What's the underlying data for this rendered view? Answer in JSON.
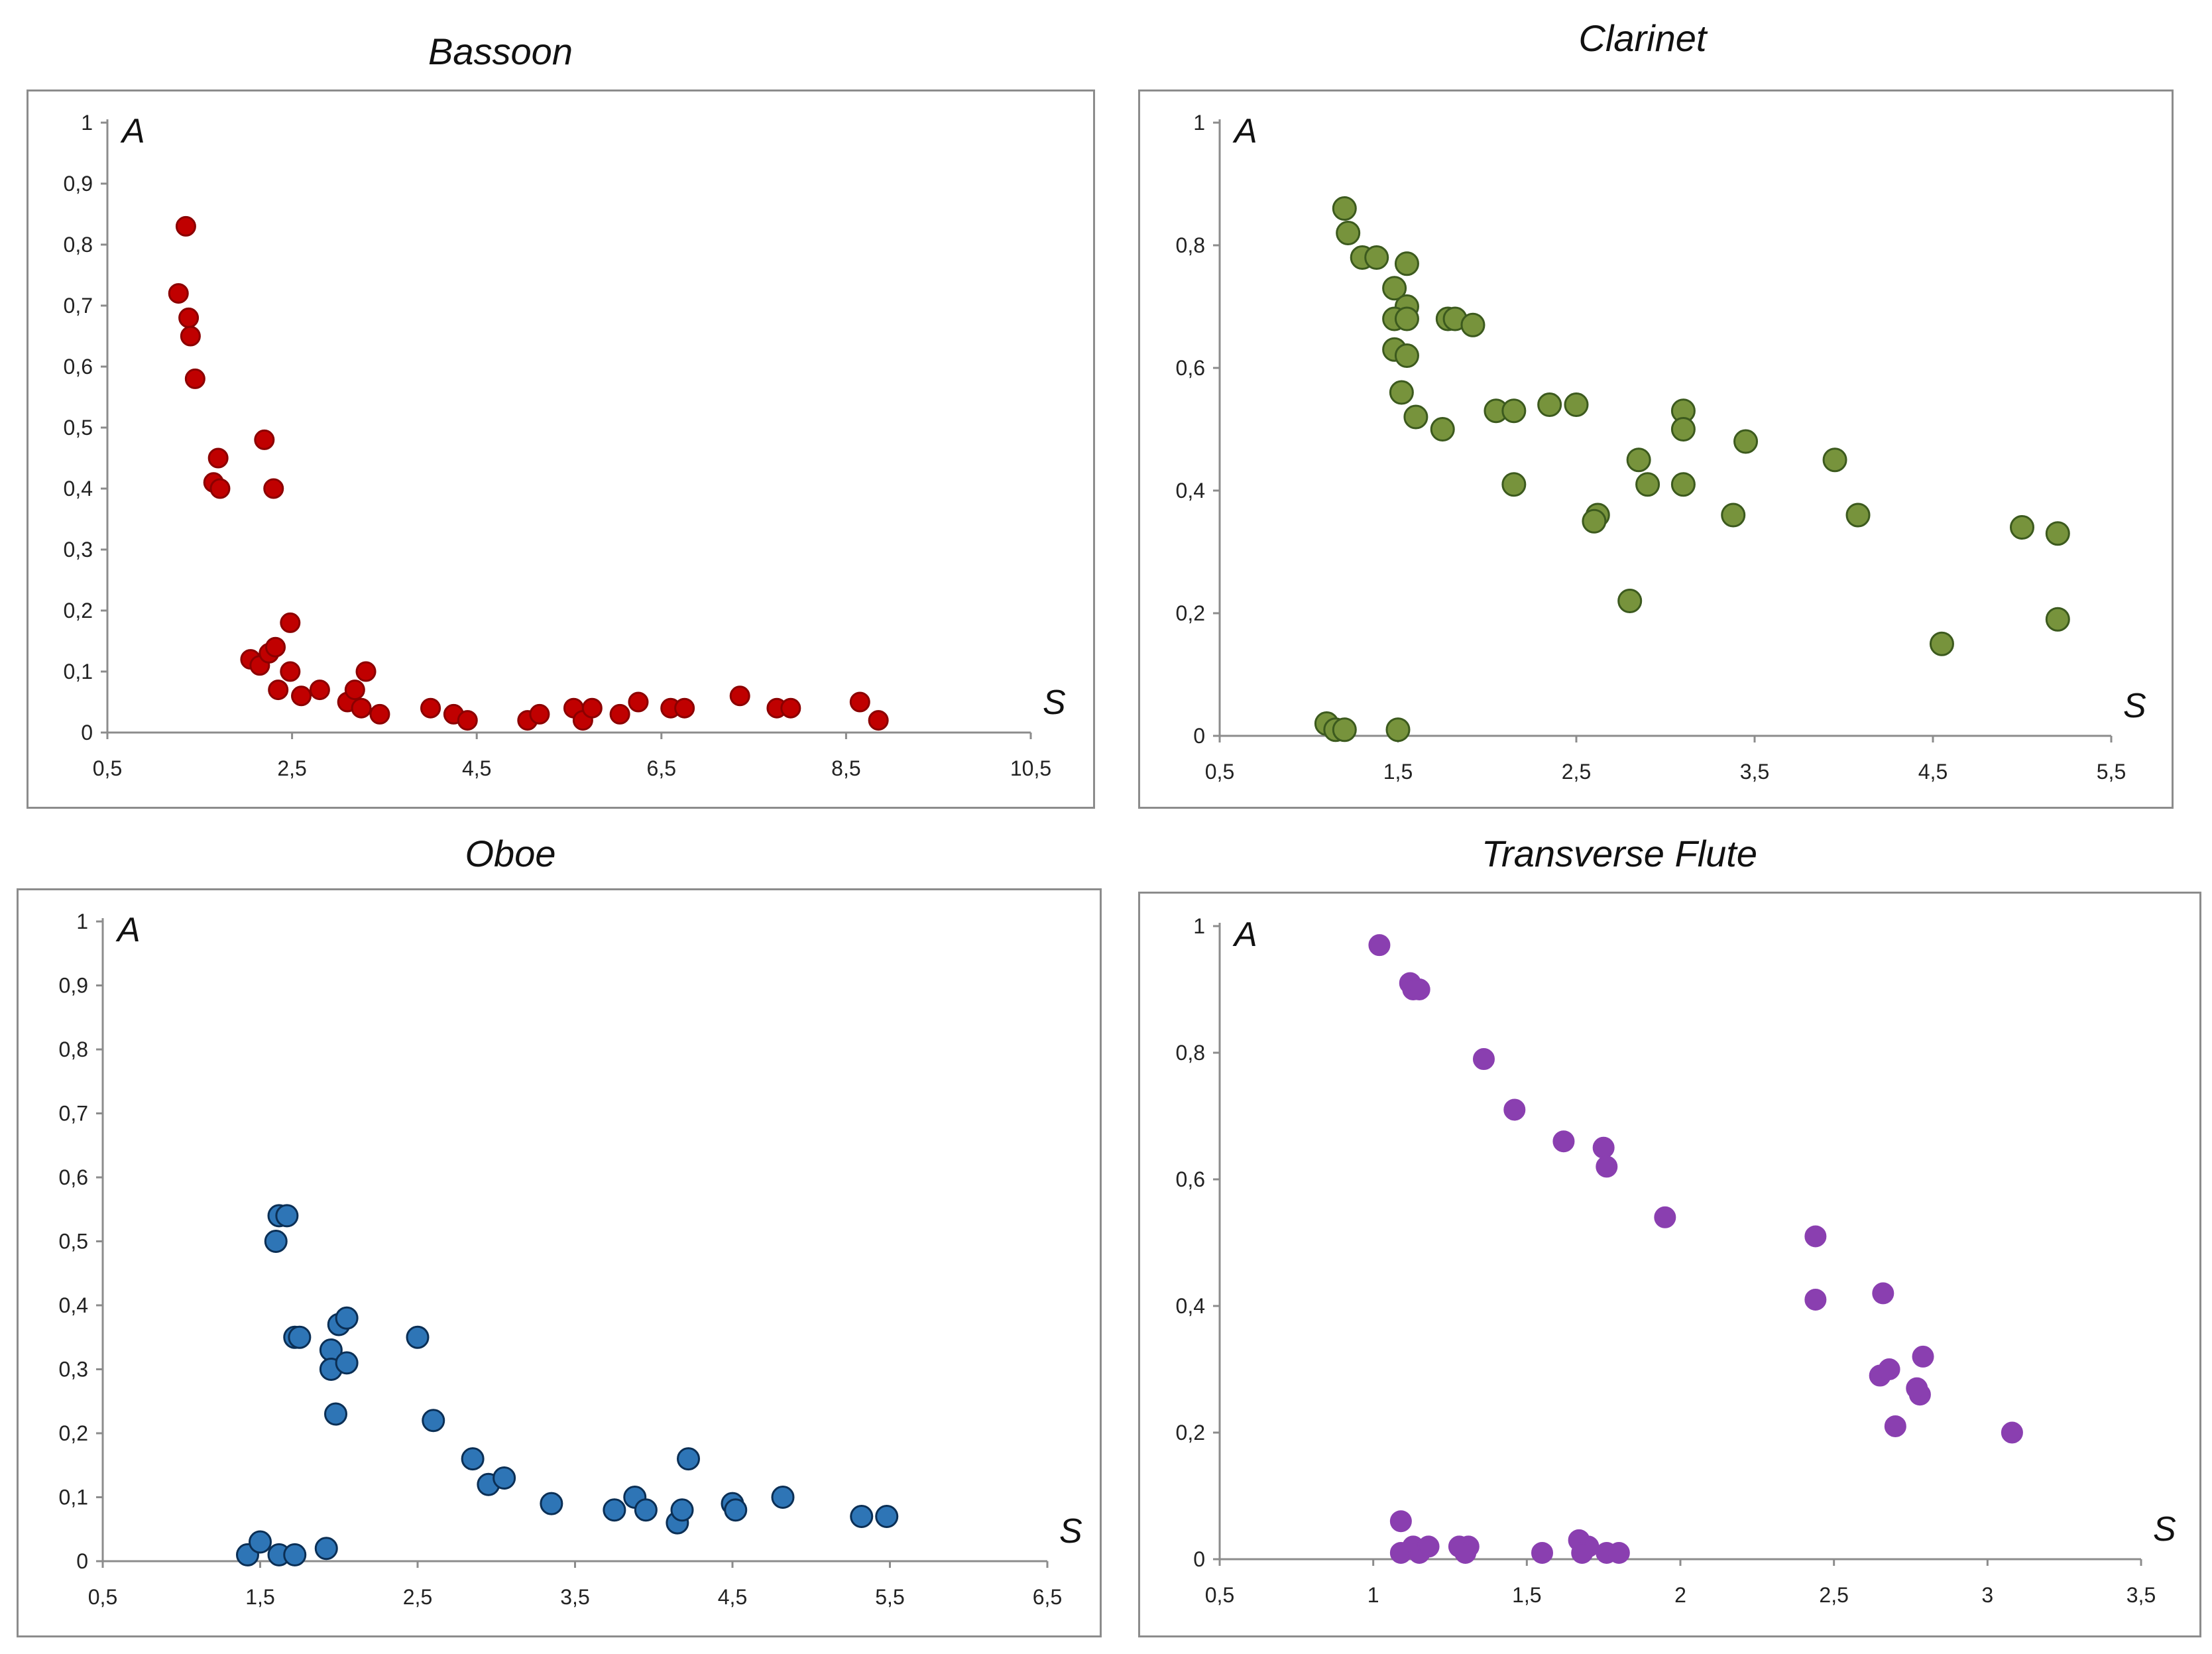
{
  "chart_data": [
    {
      "type": "scatter",
      "title": "Bassoon",
      "xlabel": "S",
      "ylabel": "A",
      "xlim": [
        0.5,
        10.5
      ],
      "ylim": [
        0,
        1
      ],
      "xticks": [
        "0,5",
        "2,5",
        "4,5",
        "6,5",
        "8,5",
        "10,5"
      ],
      "yticks": [
        "0",
        "0,1",
        "0,2",
        "0,3",
        "0,4",
        "0,5",
        "0,6",
        "0,7",
        "0,8",
        "0,9",
        "1"
      ],
      "color": "#c00000",
      "stroke": "#8b0000",
      "series": [
        {
          "name": "Bassoon",
          "points": [
            [
              1.35,
              0.83
            ],
            [
              1.27,
              0.72
            ],
            [
              1.38,
              0.68
            ],
            [
              1.4,
              0.65
            ],
            [
              1.45,
              0.58
            ],
            [
              1.7,
              0.45
            ],
            [
              1.65,
              0.41
            ],
            [
              1.72,
              0.4
            ],
            [
              2.2,
              0.48
            ],
            [
              2.3,
              0.4
            ],
            [
              2.48,
              0.18
            ],
            [
              2.05,
              0.12
            ],
            [
              2.15,
              0.11
            ],
            [
              2.25,
              0.13
            ],
            [
              2.32,
              0.14
            ],
            [
              2.35,
              0.07
            ],
            [
              2.48,
              0.1
            ],
            [
              2.6,
              0.06
            ],
            [
              2.8,
              0.07
            ],
            [
              3.1,
              0.05
            ],
            [
              3.18,
              0.07
            ],
            [
              3.25,
              0.04
            ],
            [
              3.3,
              0.1
            ],
            [
              3.45,
              0.03
            ],
            [
              4.0,
              0.04
            ],
            [
              4.25,
              0.03
            ],
            [
              4.4,
              0.02
            ],
            [
              5.05,
              0.02
            ],
            [
              5.18,
              0.03
            ],
            [
              5.55,
              0.04
            ],
            [
              5.65,
              0.02
            ],
            [
              5.75,
              0.04
            ],
            [
              6.05,
              0.03
            ],
            [
              6.25,
              0.05
            ],
            [
              6.6,
              0.04
            ],
            [
              6.75,
              0.04
            ],
            [
              7.35,
              0.06
            ],
            [
              7.75,
              0.04
            ],
            [
              7.9,
              0.04
            ],
            [
              8.65,
              0.05
            ],
            [
              8.85,
              0.02
            ]
          ]
        }
      ]
    },
    {
      "type": "scatter",
      "title": "Clarinet",
      "xlabel": "S",
      "ylabel": "A",
      "xlim": [
        0.5,
        5.5
      ],
      "ylim": [
        0,
        1
      ],
      "xticks": [
        "0,5",
        "1,5",
        "2,5",
        "3,5",
        "4,5",
        "5,5"
      ],
      "yticks": [
        "0",
        "0,2",
        "0,4",
        "0,6",
        "0,8",
        "1"
      ],
      "color": "#77933c",
      "stroke": "#3c5a1e",
      "series": [
        {
          "name": "Clarinet",
          "points": [
            [
              1.2,
              0.86
            ],
            [
              1.22,
              0.82
            ],
            [
              1.3,
              0.78
            ],
            [
              1.38,
              0.78
            ],
            [
              1.55,
              0.77
            ],
            [
              1.48,
              0.73
            ],
            [
              1.55,
              0.7
            ],
            [
              1.48,
              0.68
            ],
            [
              1.55,
              0.68
            ],
            [
              1.48,
              0.63
            ],
            [
              1.55,
              0.62
            ],
            [
              1.78,
              0.68
            ],
            [
              1.82,
              0.68
            ],
            [
              1.92,
              0.67
            ],
            [
              1.52,
              0.56
            ],
            [
              1.6,
              0.52
            ],
            [
              1.75,
              0.5
            ],
            [
              2.05,
              0.53
            ],
            [
              2.15,
              0.53
            ],
            [
              2.35,
              0.54
            ],
            [
              2.5,
              0.54
            ],
            [
              3.1,
              0.53
            ],
            [
              3.1,
              0.5
            ],
            [
              3.45,
              0.48
            ],
            [
              2.85,
              0.45
            ],
            [
              3.95,
              0.45
            ],
            [
              2.15,
              0.41
            ],
            [
              2.9,
              0.41
            ],
            [
              3.1,
              0.41
            ],
            [
              2.62,
              0.36
            ],
            [
              2.6,
              0.35
            ],
            [
              3.38,
              0.36
            ],
            [
              4.08,
              0.36
            ],
            [
              5.0,
              0.34
            ],
            [
              5.2,
              0.33
            ],
            [
              2.8,
              0.22
            ],
            [
              5.2,
              0.19
            ],
            [
              4.55,
              0.15
            ],
            [
              1.1,
              0.02
            ],
            [
              1.15,
              0.01
            ],
            [
              1.2,
              0.01
            ],
            [
              1.5,
              0.01
            ]
          ]
        }
      ]
    },
    {
      "type": "scatter",
      "title": "Oboe",
      "xlabel": "S",
      "ylabel": "A",
      "xlim": [
        0.5,
        6.5
      ],
      "ylim": [
        0,
        1
      ],
      "xticks": [
        "0,5",
        "1,5",
        "2,5",
        "3,5",
        "4,5",
        "5,5",
        "6,5"
      ],
      "yticks": [
        "0",
        "0,1",
        "0,2",
        "0,3",
        "0,4",
        "0,5",
        "0,6",
        "0,7",
        "0,8",
        "0,9",
        "1"
      ],
      "color": "#2e75b6",
      "stroke": "#0b2f55",
      "series": [
        {
          "name": "Oboe",
          "points": [
            [
              1.62,
              0.54
            ],
            [
              1.67,
              0.54
            ],
            [
              1.6,
              0.5
            ],
            [
              1.72,
              0.35
            ],
            [
              1.75,
              0.35
            ],
            [
              1.95,
              0.33
            ],
            [
              2.0,
              0.37
            ],
            [
              2.05,
              0.38
            ],
            [
              1.95,
              0.3
            ],
            [
              2.05,
              0.31
            ],
            [
              1.98,
              0.23
            ],
            [
              2.5,
              0.35
            ],
            [
              2.6,
              0.22
            ],
            [
              2.85,
              0.16
            ],
            [
              2.95,
              0.12
            ],
            [
              3.05,
              0.13
            ],
            [
              3.35,
              0.09
            ],
            [
              3.75,
              0.08
            ],
            [
              3.88,
              0.1
            ],
            [
              3.95,
              0.08
            ],
            [
              4.15,
              0.06
            ],
            [
              4.18,
              0.08
            ],
            [
              4.22,
              0.16
            ],
            [
              4.5,
              0.09
            ],
            [
              4.52,
              0.08
            ],
            [
              4.82,
              0.1
            ],
            [
              5.32,
              0.07
            ],
            [
              5.48,
              0.07
            ],
            [
              1.42,
              0.01
            ],
            [
              1.5,
              0.03
            ],
            [
              1.62,
              0.01
            ],
            [
              1.72,
              0.01
            ],
            [
              1.92,
              0.02
            ]
          ]
        }
      ]
    },
    {
      "type": "scatter",
      "title": "Transverse Flute",
      "xlabel": "S",
      "ylabel": "A",
      "xlim": [
        0.5,
        3.5
      ],
      "ylim": [
        0,
        1
      ],
      "xticks": [
        "0,5",
        "1",
        "1,5",
        "2",
        "2,5",
        "3",
        "3,5"
      ],
      "yticks": [
        "0",
        "0,2",
        "0,4",
        "0,6",
        "0,8",
        "1"
      ],
      "color": "#8a3fb0",
      "stroke": "#8a3fb0",
      "series": [
        {
          "name": "Transverse Flute",
          "points": [
            [
              1.02,
              0.97
            ],
            [
              1.12,
              0.91
            ],
            [
              1.13,
              0.9
            ],
            [
              1.15,
              0.9
            ],
            [
              1.36,
              0.79
            ],
            [
              1.46,
              0.71
            ],
            [
              1.62,
              0.66
            ],
            [
              1.75,
              0.65
            ],
            [
              1.76,
              0.62
            ],
            [
              1.95,
              0.54
            ],
            [
              2.44,
              0.51
            ],
            [
              2.44,
              0.41
            ],
            [
              2.66,
              0.42
            ],
            [
              2.65,
              0.29
            ],
            [
              2.68,
              0.3
            ],
            [
              2.79,
              0.32
            ],
            [
              2.78,
              0.26
            ],
            [
              2.77,
              0.27
            ],
            [
              2.7,
              0.21
            ],
            [
              3.08,
              0.2
            ],
            [
              1.09,
              0.06
            ],
            [
              1.09,
              0.01
            ],
            [
              1.13,
              0.02
            ],
            [
              1.15,
              0.01
            ],
            [
              1.18,
              0.02
            ],
            [
              1.28,
              0.02
            ],
            [
              1.31,
              0.02
            ],
            [
              1.3,
              0.01
            ],
            [
              1.55,
              0.01
            ],
            [
              1.67,
              0.03
            ],
            [
              1.7,
              0.02
            ],
            [
              1.68,
              0.01
            ],
            [
              1.76,
              0.01
            ],
            [
              1.8,
              0.01
            ]
          ]
        }
      ]
    }
  ]
}
